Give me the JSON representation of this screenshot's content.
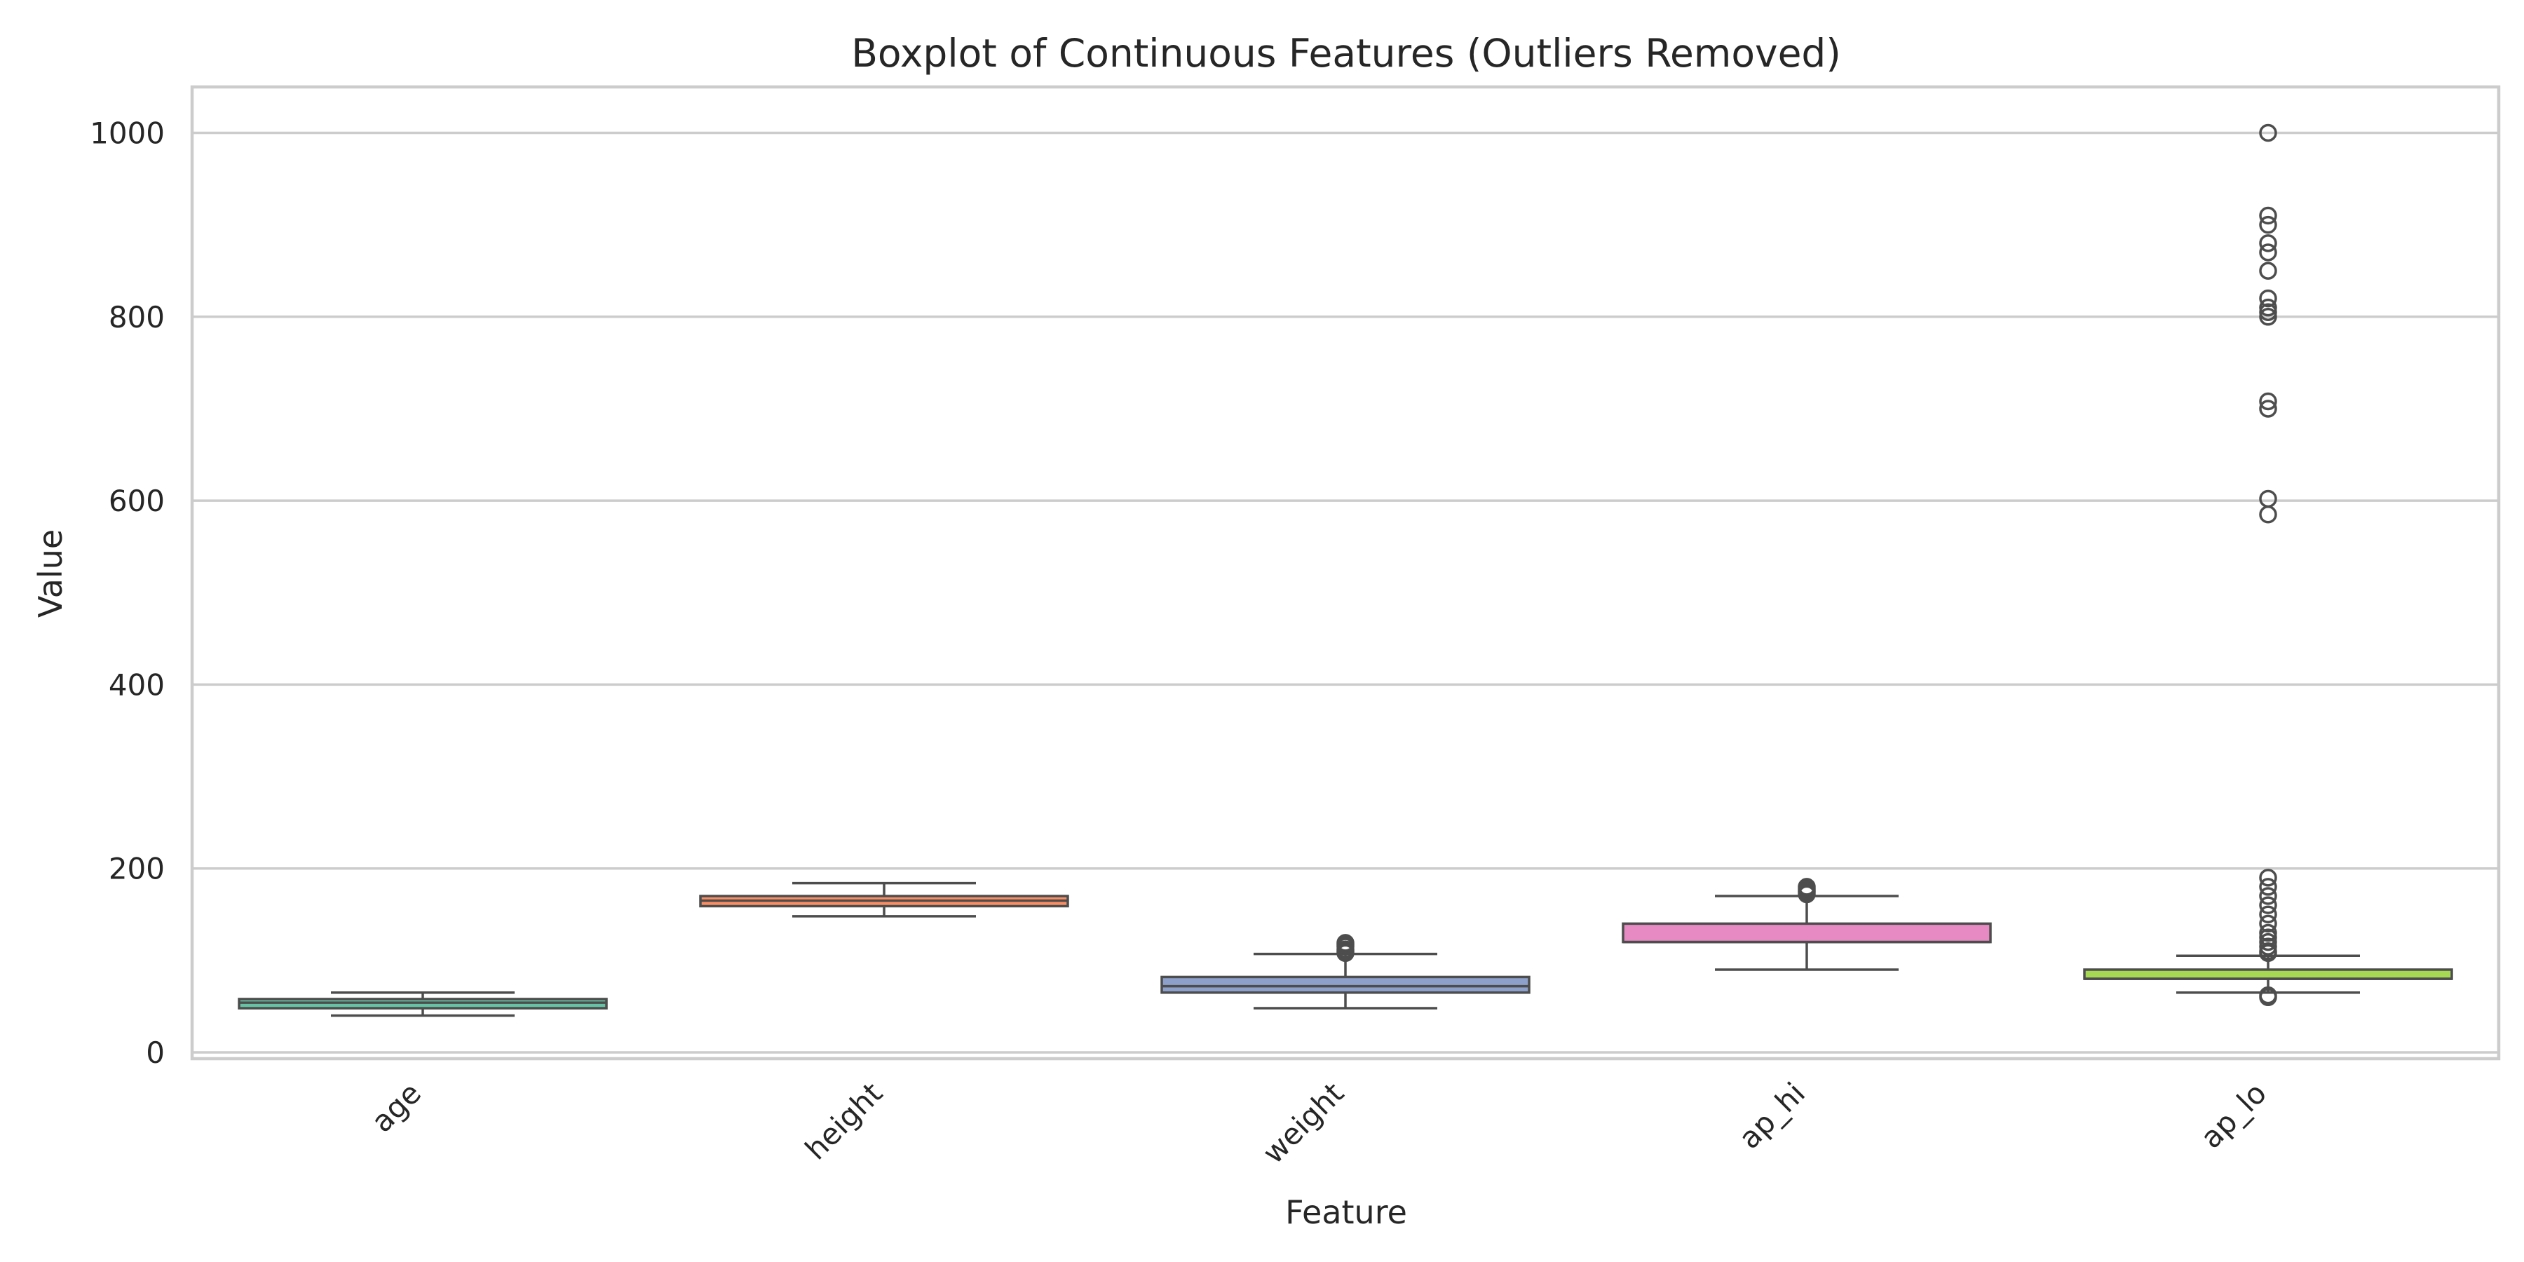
{
  "chart_data": {
    "type": "boxplot",
    "title": "Boxplot of Continuous Features (Outliers Removed)",
    "xlabel": "Feature",
    "ylabel": "Value",
    "ylim": [
      -8,
      1048
    ],
    "yticks": [
      0,
      200,
      400,
      600,
      800,
      1000
    ],
    "grid": true,
    "categories": [
      "age",
      "height",
      "weight",
      "ap_hi",
      "ap_lo"
    ],
    "colors": [
      "#66c2a5",
      "#fc8d62",
      "#8da0cb",
      "#e78ac3",
      "#a6d854"
    ],
    "boxes": [
      {
        "category": "age",
        "whisker_low": 40,
        "q1": 48,
        "median": 54,
        "q3": 58,
        "whisker_high": 65,
        "fliers": []
      },
      {
        "category": "height",
        "whisker_low": 148,
        "q1": 159,
        "median": 165,
        "q3": 170,
        "whisker_high": 184,
        "fliers": []
      },
      {
        "category": "weight",
        "whisker_low": 48,
        "q1": 65,
        "median": 72,
        "q3": 82,
        "whisker_high": 107,
        "fliers": [
          108,
          110,
          112,
          115,
          117,
          119
        ]
      },
      {
        "category": "ap_hi",
        "whisker_low": 90,
        "q1": 120,
        "median": 120,
        "q3": 140,
        "whisker_high": 170,
        "fliers": [
          172,
          174,
          176,
          178,
          180
        ]
      },
      {
        "category": "ap_lo",
        "whisker_low": 65,
        "q1": 80,
        "median": 80,
        "q3": 90,
        "whisker_high": 105,
        "fliers": [
          60,
          62,
          108,
          110,
          115,
          120,
          125,
          130,
          140,
          150,
          160,
          170,
          180,
          190,
          585,
          602,
          700,
          708,
          800,
          805,
          810,
          820,
          850,
          870,
          880,
          900,
          910,
          1000
        ]
      }
    ]
  }
}
